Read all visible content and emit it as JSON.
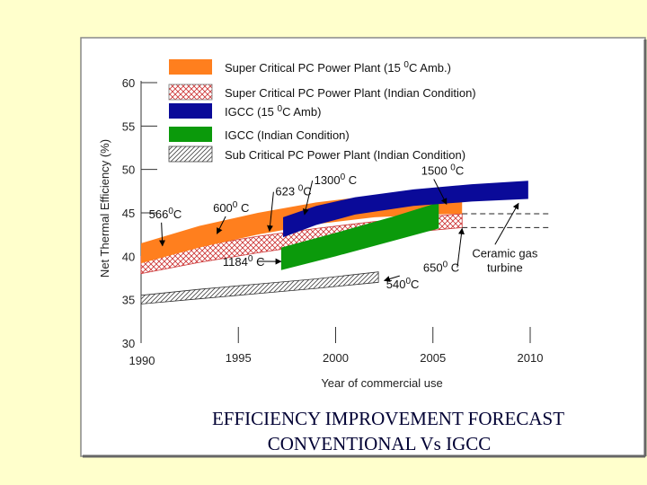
{
  "chart_data": {
    "type": "area",
    "title": "EFFICIENCY IMPROVEMENT FORECAST",
    "subtitle": "CONVENTIONAL Vs IGCC",
    "xlabel": "Year of commercial use",
    "ylabel": "Net Thermal Efficiency (%)",
    "xlim": [
      1990,
      2010
    ],
    "ylim": [
      30,
      60
    ],
    "x_ticks": [
      "1990",
      "1995",
      "2000",
      "2005",
      "2010"
    ],
    "y_ticks": [
      "30",
      "35",
      "40",
      "45",
      "50",
      "55",
      "60"
    ],
    "grid": false,
    "legend_position": "top",
    "legend": [
      {
        "label": "Super Critical PC Power Plant (15 ",
        "sup": "0",
        "rest": "C Amb.)",
        "style": "orange"
      },
      {
        "label": "Super Critical PC Power Plant (Indian Condition)",
        "style": "crosshatch-red"
      },
      {
        "label": "IGCC (15 ",
        "sup": "0",
        "rest": "C Amb)",
        "style": "blue"
      },
      {
        "label": "IGCC (Indian Condition)",
        "style": "green"
      },
      {
        "label": "Sub Critical PC Power Plant (Indian Condition)",
        "style": "diagonal-gray"
      }
    ],
    "series": [
      {
        "style": "orange",
        "color": "#ff7f1e",
        "upper": [
          [
            1990,
            41.5
          ],
          [
            1993,
            43.5
          ],
          [
            1996,
            45
          ],
          [
            1999,
            46.2
          ],
          [
            2002,
            47
          ],
          [
            2005,
            47.4
          ],
          [
            2006.5,
            47.5
          ]
        ],
        "lower": [
          [
            1990,
            39.2
          ],
          [
            1993,
            41
          ],
          [
            1996,
            42.5
          ],
          [
            1999,
            43.7
          ],
          [
            2002,
            44.5
          ],
          [
            2005,
            44.8
          ],
          [
            2006.5,
            44.9
          ]
        ]
      },
      {
        "style": "crosshatch-red",
        "color": "#cc3333",
        "upper": [
          [
            1990,
            40
          ],
          [
            1993,
            41.2
          ],
          [
            1996,
            42.3
          ],
          [
            1999,
            43.2
          ],
          [
            2002,
            44
          ],
          [
            2005,
            44.6
          ],
          [
            2006.5,
            44.9
          ]
        ],
        "lower": [
          [
            1990,
            38
          ],
          [
            1993,
            39.3
          ],
          [
            1996,
            40.4
          ],
          [
            1999,
            41.4
          ],
          [
            2002,
            42.3
          ],
          [
            2005,
            43
          ],
          [
            2006.5,
            43.3
          ]
        ]
      },
      {
        "style": "blue",
        "color": "#0a0a99",
        "upper": [
          [
            1997.3,
            44.5
          ],
          [
            1999,
            45.8
          ],
          [
            2001,
            46.8
          ],
          [
            2004,
            47.7
          ],
          [
            2007,
            48.3
          ],
          [
            2009.9,
            48.7
          ]
        ],
        "lower": [
          [
            1997.3,
            42.2
          ],
          [
            1999,
            43.6
          ],
          [
            2001,
            44.8
          ],
          [
            2004,
            45.8
          ],
          [
            2007,
            46.3
          ],
          [
            2009.9,
            46.6
          ]
        ]
      },
      {
        "style": "green",
        "color": "#0b9a0b",
        "upper": [
          [
            1997.2,
            41
          ],
          [
            2000,
            42.7
          ],
          [
            2003,
            44.6
          ],
          [
            2005.3,
            46.2
          ]
        ],
        "lower": [
          [
            1997.2,
            38.4
          ],
          [
            2000,
            40
          ],
          [
            2003,
            41.8
          ],
          [
            2005.3,
            43.2
          ]
        ]
      },
      {
        "style": "diagonal-gray",
        "color": "#555555",
        "upper": [
          [
            1990,
            35.5
          ],
          [
            1993,
            36.2
          ],
          [
            1996,
            36.8
          ],
          [
            1999,
            37.4
          ],
          [
            2002.2,
            38.2
          ]
        ],
        "lower": [
          [
            1990,
            34.5
          ],
          [
            1993,
            35.1
          ],
          [
            1996,
            35.7
          ],
          [
            1999,
            36.3
          ],
          [
            2002.2,
            37
          ]
        ]
      }
    ],
    "dashed_lines": [
      {
        "x": [
          2006.5,
          2011
        ],
        "y": 44.9
      },
      {
        "x": [
          2006.5,
          2011
        ],
        "y": 43.3
      }
    ],
    "annotations": [
      {
        "text": "566",
        "sup": "0",
        "rest": "C",
        "at": [
          1990.4,
          44.4
        ],
        "arrow_to": [
          1991.1,
          41.2
        ]
      },
      {
        "text": "600",
        "sup": "0",
        "rest": " C",
        "at": [
          1993.7,
          45.1
        ],
        "arrow_to": [
          1993.9,
          42.6
        ]
      },
      {
        "text": "623 ",
        "sup": "0",
        "rest": "C",
        "at": [
          1996.9,
          47
        ],
        "arrow_to": [
          1996.6,
          42.9
        ]
      },
      {
        "text": "1300",
        "sup": "0",
        "rest": " C",
        "at": [
          1998.9,
          48.3
        ],
        "arrow_to": [
          1998.4,
          44.8
        ]
      },
      {
        "text": "1500 ",
        "sup": "0",
        "rest": "C",
        "at": [
          2004.4,
          49.4
        ],
        "arrow_to": [
          2005.7,
          46
        ]
      },
      {
        "text": "1184",
        "sup": "0",
        "rest": " C",
        "at": [
          1994.2,
          38.9
        ],
        "arrow_to": [
          1997.2,
          39.4
        ]
      },
      {
        "text": "650",
        "sup": "0",
        "rest": " C",
        "at": [
          2004.5,
          38.2
        ],
        "arrow_to": [
          2006.5,
          43.2
        ]
      },
      {
        "text": "540",
        "sup": "0",
        "rest": "C",
        "at": [
          2002.6,
          36.3
        ],
        "arrow_to": [
          2002.5,
          37.2
        ]
      },
      {
        "text": "Ceramic gas",
        "at": [
          2008.7,
          39.9
        ],
        "arrow_to": [
          2009.4,
          46.1
        ],
        "line2": "turbine"
      }
    ]
  }
}
